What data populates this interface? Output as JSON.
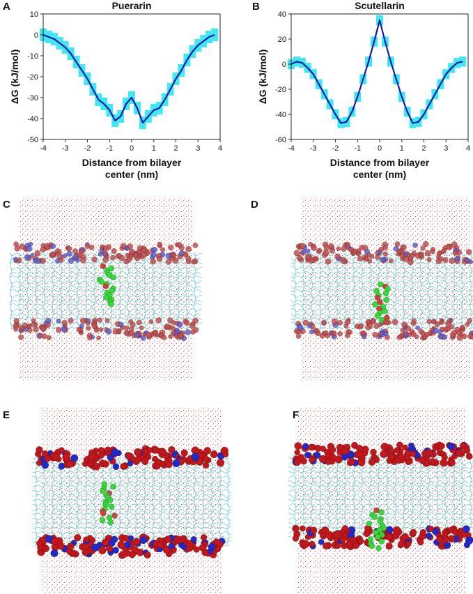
{
  "chart_data": [
    {
      "type": "line",
      "panel": "A",
      "title": "Puerarin",
      "xlabel": [
        "Distance from bilayer",
        "center (nm)"
      ],
      "ylabel": "ΔG (kJ/mol)",
      "x": [
        -4,
        -3.75,
        -3.5,
        -3.25,
        -3,
        -2.75,
        -2.5,
        -2.25,
        -2,
        -1.75,
        -1.5,
        -1.25,
        -1,
        -0.75,
        -0.5,
        -0.25,
        0,
        0.25,
        0.5,
        0.75,
        1,
        1.25,
        1.5,
        1.75,
        2,
        2.25,
        2.5,
        2.75,
        3,
        3.25,
        3.5,
        3.75
      ],
      "series": [
        {
          "color": "#1a1aa8",
          "band_color": "#40e8f4",
          "values": [
            0,
            -1,
            -2,
            -4,
            -6,
            -9,
            -13,
            -17,
            -21,
            -26,
            -31,
            -33,
            -36,
            -41,
            -39,
            -33,
            -30,
            -35,
            -42,
            -39,
            -36,
            -35,
            -31,
            -26,
            -21,
            -17,
            -12,
            -8,
            -5,
            -3,
            -1,
            0
          ],
          "error": [
            3,
            3,
            3,
            3,
            3,
            3,
            3,
            3,
            3,
            3,
            3,
            3,
            3,
            3,
            3,
            3,
            3,
            3,
            3,
            3,
            3,
            3,
            3,
            3,
            3,
            3,
            3,
            3,
            3,
            3,
            3,
            3
          ]
        }
      ],
      "xlim": [
        -4,
        4
      ],
      "xticks": [
        -4,
        -3,
        -2,
        -1,
        0,
        1,
        2,
        3,
        4
      ],
      "ylim": [
        -50,
        10
      ],
      "yticks": [
        -50,
        -40,
        -30,
        -20,
        -10,
        0,
        10
      ],
      "grid": false
    },
    {
      "type": "line",
      "panel": "B",
      "title": "Scutellarin",
      "xlabel": [
        "Distance from bilayer",
        "center (nm)"
      ],
      "ylabel": "ΔG (kJ/mol)",
      "x": [
        -4,
        -3.75,
        -3.5,
        -3.25,
        -3,
        -2.75,
        -2.5,
        -2.25,
        -2,
        -1.75,
        -1.5,
        -1.25,
        -1,
        -0.75,
        -0.5,
        -0.25,
        0,
        0.25,
        0.5,
        0.75,
        1,
        1.25,
        1.5,
        1.75,
        2,
        2.25,
        2.5,
        2.75,
        3,
        3.25,
        3.5,
        3.75
      ],
      "series": [
        {
          "color": "#1a1aa8",
          "band_color": "#40e8f4",
          "values": [
            0,
            2,
            1,
            -3,
            -8,
            -16,
            -24,
            -32,
            -40,
            -47,
            -46,
            -38,
            -26,
            -12,
            2,
            18,
            35,
            18,
            2,
            -12,
            -26,
            -38,
            -47,
            -46,
            -40,
            -32,
            -24,
            -16,
            -8,
            -3,
            1,
            2
          ],
          "error": [
            4,
            4,
            4,
            4,
            4,
            4,
            4,
            4,
            4,
            4,
            4,
            4,
            4,
            4,
            4,
            4,
            4,
            4,
            4,
            4,
            4,
            4,
            4,
            4,
            4,
            4,
            4,
            4,
            4,
            4,
            4,
            4
          ]
        }
      ],
      "xlim": [
        -4,
        4
      ],
      "xticks": [
        -4,
        -3,
        -2,
        -1,
        0,
        1,
        2,
        3,
        4
      ],
      "ylim": [
        -60,
        40
      ],
      "yticks": [
        -60,
        -40,
        -20,
        0,
        20,
        40
      ],
      "grid": false
    }
  ],
  "panels": [
    {
      "label": "C"
    },
    {
      "label": "D"
    },
    {
      "label": "E"
    },
    {
      "label": "F"
    }
  ]
}
